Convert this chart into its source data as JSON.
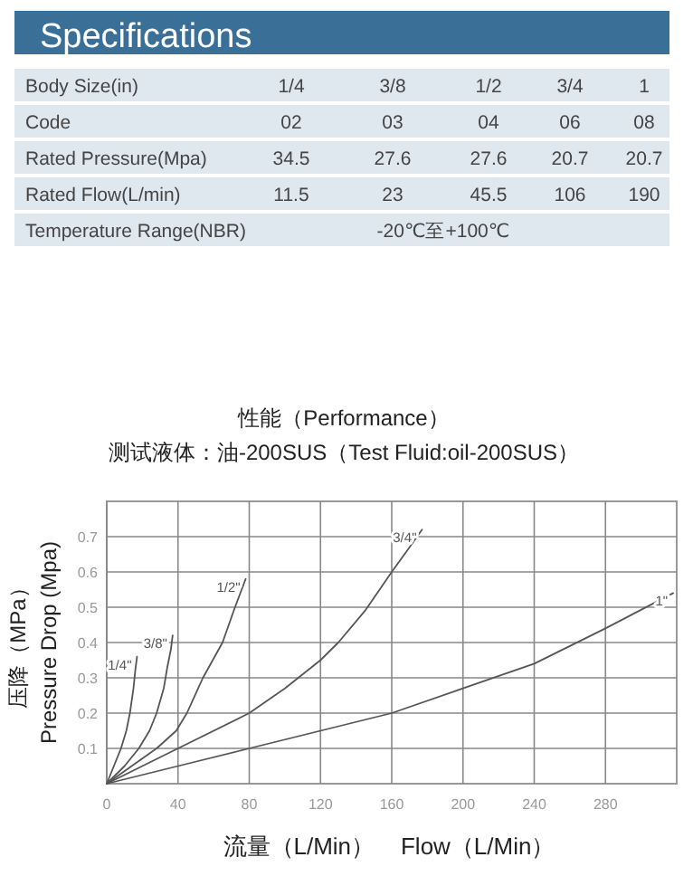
{
  "chart_data": [
    {
      "type": "other",
      "title": "Specifications",
      "annotations": [
        "Body Size(in)",
        "1/4",
        "3/8",
        "1/2",
        "3/4",
        "1",
        "Code",
        "02",
        "03",
        "04",
        "06",
        "08",
        "Rated Pressure(Mpa)",
        "34.5",
        "27.6",
        "27.6",
        "20.7",
        "20.7",
        "Rated Flow(L/min)",
        "11.5",
        "23",
        "45.5",
        "106",
        "190",
        "Temperature Range(NBR)",
        "-20℃至+100℃"
      ]
    },
    {
      "type": "line",
      "title": "性能（Performance）",
      "subtitle": "测试液体：油-200SUS（Test Fluid:oil-200SUS）",
      "xlabel": "流量（L/Min）    Flow（L/Min）",
      "ylabel": "压降（MPa）\nPressure Drop (Mpa)",
      "xlim": [
        0,
        320
      ],
      "ylim": [
        0,
        0.8
      ],
      "xticks": [
        0,
        40,
        80,
        120,
        160,
        200,
        240,
        280
      ],
      "yticks": [
        0.1,
        0.2,
        0.3,
        0.4,
        0.5,
        0.6,
        0.7
      ],
      "grid": true,
      "series": [
        {
          "name": "1/4\"",
          "color": "#555555",
          "x": [
            0,
            4,
            8,
            11,
            13,
            15,
            16,
            17
          ],
          "values": [
            0,
            0.05,
            0.1,
            0.15,
            0.2,
            0.27,
            0.32,
            0.36
          ]
        },
        {
          "name": "3/8\"",
          "color": "#555555",
          "x": [
            0,
            10,
            18,
            24,
            28,
            32,
            34,
            36,
            37
          ],
          "values": [
            0,
            0.05,
            0.1,
            0.15,
            0.2,
            0.27,
            0.33,
            0.38,
            0.42
          ]
        },
        {
          "name": "1/2\"",
          "color": "#555555",
          "x": [
            0,
            14,
            28,
            39,
            45,
            54,
            65,
            72,
            78
          ],
          "values": [
            0,
            0.05,
            0.1,
            0.15,
            0.2,
            0.3,
            0.4,
            0.5,
            0.58
          ]
        },
        {
          "name": "3/4\"",
          "color": "#555555",
          "x": [
            0,
            40,
            80,
            100,
            120,
            130,
            145,
            160,
            170,
            177
          ],
          "values": [
            0,
            0.1,
            0.2,
            0.27,
            0.35,
            0.4,
            0.49,
            0.6,
            0.67,
            0.72
          ]
        },
        {
          "name": "1\"",
          "color": "#555555",
          "x": [
            0,
            40,
            80,
            120,
            160,
            200,
            240,
            280,
            318
          ],
          "values": [
            0,
            0.05,
            0.1,
            0.15,
            0.2,
            0.27,
            0.34,
            0.44,
            0.54
          ]
        }
      ]
    }
  ]
}
